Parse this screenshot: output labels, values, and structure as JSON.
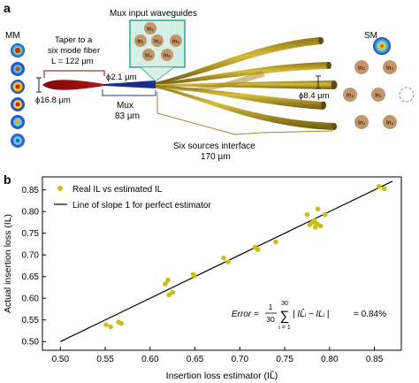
{
  "panel_a": {
    "label": "a",
    "mm_label": "MM",
    "sm_label": "SM",
    "mux_input_title": "Mux input waveguides",
    "taper_text": [
      "Taper to a",
      "six mode fiber",
      "L = 122 µm"
    ],
    "phi_16_8": "ϕ16.8 µm",
    "phi_2_1": "ϕ2.1 µm",
    "phi_8_4": "ϕ8.4 µm",
    "mux_text": [
      "Mux",
      "83 µm"
    ],
    "six_sources_text": [
      "Six sources interface",
      "170 µm"
    ],
    "box_ports": [
      "In₂",
      "In₁",
      "In₃",
      "In₆",
      "In₄",
      "In₅"
    ],
    "sm_ports": [
      "In₂",
      "In₃",
      "In₆",
      "In₁",
      "In₅",
      "In₄"
    ]
  },
  "panel_b": {
    "label": "b",
    "error_text": "Error = 1/30 ∑ | IL̂ᵢ − ILᵢ | = 0.84%",
    "error_lhs": "Error = ",
    "error_rhs": "= 0.84%",
    "sum_upper": "30",
    "sum_lower": "i = 1",
    "frac_num": "1",
    "frac_den": "30",
    "abs_term": "| IL̂ᵢ − ILᵢ |"
  },
  "chart_data": {
    "type": "scatter",
    "xlabel": "Insertion loss estimator (IL̂)",
    "ylabel": "Actual insertion loss (IL)",
    "xlim": [
      0.48,
      0.88
    ],
    "ylim": [
      0.48,
      0.88
    ],
    "xticks": [
      "0.50",
      "0.55",
      "0.60",
      "0.65",
      "0.70",
      "0.75",
      "0.80",
      "0.85"
    ],
    "yticks": [
      "0.50",
      "0.55",
      "0.60",
      "0.65",
      "0.70",
      "0.75",
      "0.80",
      "0.85"
    ],
    "legend_position": "top-left",
    "series": [
      {
        "name": "Real IL vs estimated IL",
        "color": "#c8c017",
        "points": [
          [
            0.551,
            0.539
          ],
          [
            0.556,
            0.534
          ],
          [
            0.565,
            0.545
          ],
          [
            0.568,
            0.542
          ],
          [
            0.617,
            0.633
          ],
          [
            0.62,
            0.642
          ],
          [
            0.621,
            0.608
          ],
          [
            0.625,
            0.613
          ],
          [
            0.648,
            0.655
          ],
          [
            0.649,
            0.652
          ],
          [
            0.682,
            0.693
          ],
          [
            0.687,
            0.684
          ],
          [
            0.717,
            0.718
          ],
          [
            0.72,
            0.712
          ],
          [
            0.74,
            0.73
          ],
          [
            0.775,
            0.793
          ],
          [
            0.778,
            0.77
          ],
          [
            0.781,
            0.775
          ],
          [
            0.783,
            0.78
          ],
          [
            0.784,
            0.764
          ],
          [
            0.786,
            0.772
          ],
          [
            0.787,
            0.806
          ],
          [
            0.79,
            0.767
          ],
          [
            0.795,
            0.793
          ],
          [
            0.855,
            0.858
          ],
          [
            0.861,
            0.853
          ]
        ]
      },
      {
        "name": "Line of slope 1 for perfect estimator",
        "color": "#000000",
        "line": [
          [
            0.5,
            0.5
          ],
          [
            0.87,
            0.87
          ]
        ]
      }
    ]
  },
  "colors": {
    "gold_tube": "#b59a1e",
    "gold_dark": "#7a6412",
    "red_taper": "#8b0a0a",
    "blue_mux": "#1c2c8c",
    "teal_box": "#2aa98a",
    "brown_spot": "#c2956a",
    "annot_blue": "#1d3b9c",
    "annot_olive": "#9a8a2a",
    "annot_red": "#7a0e0e"
  }
}
